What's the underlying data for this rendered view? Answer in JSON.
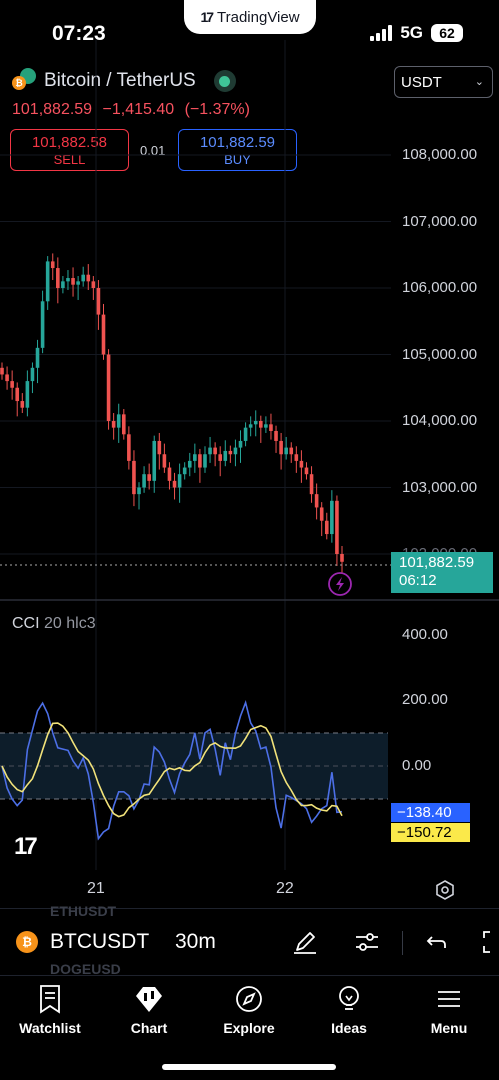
{
  "status_bar": {
    "time": "07:23",
    "network": "5G",
    "battery": "62"
  },
  "top_pill": {
    "brand": "TradingView"
  },
  "header": {
    "symbol_name": "Bitcoin / TetherUS",
    "last_price": "101,882.59",
    "change": "−1,415.40",
    "change_pct": "(−1.37%)",
    "currency": "USDT"
  },
  "trade": {
    "sell_price": "101,882.58",
    "sell_label": "SELL",
    "spread": "0.01",
    "buy_price": "101,882.59",
    "buy_label": "BUY"
  },
  "price_axis": {
    "labels": [
      "108,000.00",
      "107,000.00",
      "106,000.00",
      "105,000.00",
      "104,000.00",
      "103,000.00",
      "102,000.00"
    ],
    "current_price": "101,882.59",
    "countdown": "06:12"
  },
  "indicator": {
    "name": "CCI",
    "params": "20 hlc3",
    "axis_labels": [
      "400.00",
      "200.00",
      "0.00"
    ],
    "cci_value": "−138.40",
    "ma_value": "−150.72"
  },
  "time_axis": {
    "labels": [
      "21",
      "22"
    ]
  },
  "toolbar": {
    "symbol": "BTCUSDT",
    "interval": "30m",
    "ghost_above": "ETHUSDT",
    "ghost_below": "DOGEUSD"
  },
  "nav": {
    "watchlist": "Watchlist",
    "chart": "Chart",
    "explore": "Explore",
    "ideas": "Ideas",
    "menu": "Menu"
  },
  "colors": {
    "up": "#26a69a",
    "down": "#ef5350",
    "cci_line": "#2962ff",
    "cci_ma": "#fbe94a",
    "background": "#000000"
  },
  "chart_data": {
    "type": "candlestick",
    "interval": "30m",
    "ylim": [
      101500,
      108500
    ],
    "x_labels": [
      "21",
      "22"
    ],
    "close_series": [
      104700,
      104600,
      104500,
      104300,
      104200,
      104600,
      104800,
      105100,
      105800,
      106400,
      106300,
      106000,
      106100,
      106150,
      106050,
      106100,
      106200,
      106100,
      106000,
      105600,
      105000,
      104000,
      103900,
      104100,
      103800,
      103400,
      102900,
      103000,
      103200,
      103100,
      103700,
      103500,
      103300,
      103100,
      103000,
      103200,
      103300,
      103400,
      103500,
      103300,
      103500,
      103600,
      103500,
      103400,
      103550,
      103500,
      103600,
      103700,
      103900,
      103950,
      104000,
      103900,
      103950,
      103850,
      103700,
      103500,
      103600,
      103500,
      103400,
      103300,
      103200,
      102900,
      102700,
      102500,
      102300,
      102800,
      102000,
      101883
    ],
    "cci": {
      "period": 20,
      "source": "hlc3",
      "last": -138.4,
      "ma_last": -150.72,
      "levels": [
        100,
        0,
        -100
      ]
    }
  }
}
